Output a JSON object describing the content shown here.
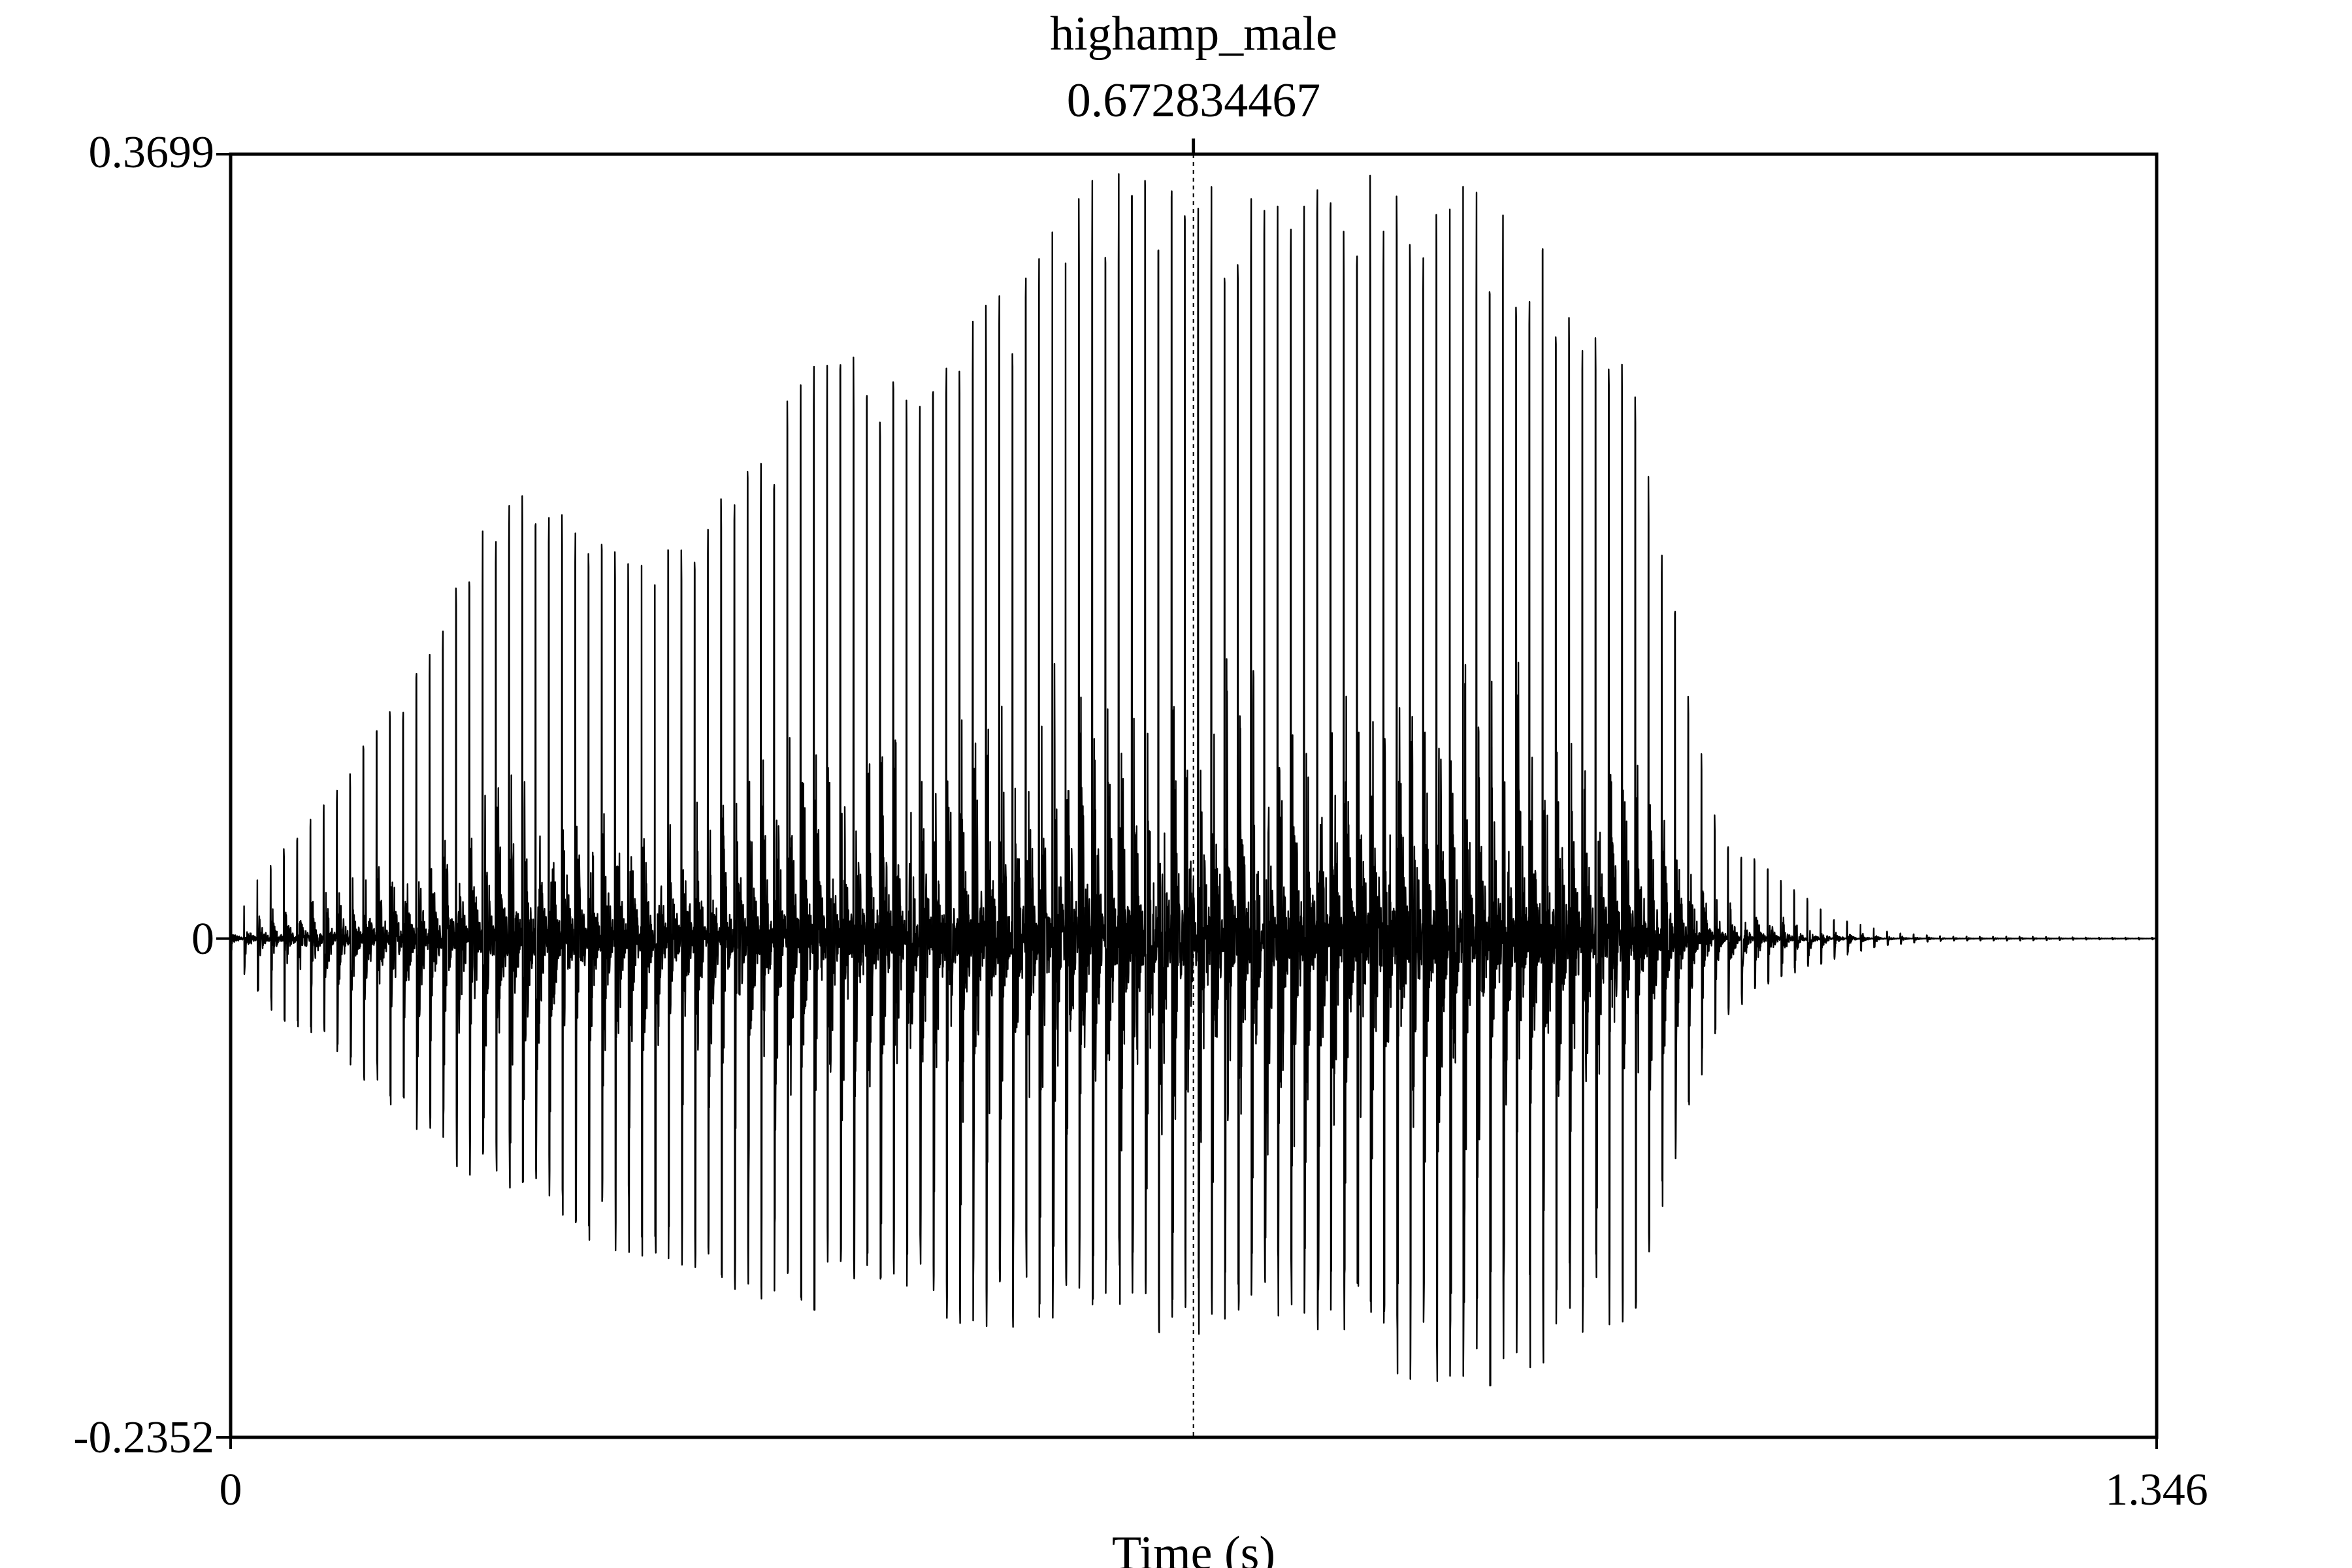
{
  "chart_data": {
    "type": "line",
    "title": "highamp_male",
    "subtitle": "0.672834467",
    "xlabel": "Time (s)",
    "ylabel": "",
    "xlim": [
      0,
      1.346
    ],
    "ylim": [
      -0.2352,
      0.3699
    ],
    "x_tick_labels": [
      "0",
      "1.346"
    ],
    "y_tick_labels": [
      "0.3699",
      "0",
      "-0.2352"
    ],
    "cursor_time": 0.672834467,
    "grid": false,
    "color": "#000000",
    "series": [
      {
        "envelope_time": [
          0,
          0.02,
          0.06,
          0.1,
          0.14,
          0.18,
          0.2,
          0.24,
          0.28,
          0.32,
          0.36,
          0.4,
          0.44,
          0.48,
          0.52,
          0.56,
          0.6,
          0.64,
          0.67,
          0.7,
          0.74,
          0.78,
          0.82,
          0.86,
          0.9,
          0.94,
          0.98,
          1.0,
          1.04,
          1.08,
          1.12,
          1.16,
          1.2,
          1.25,
          1.3,
          1.346
        ],
        "envelope_max": [
          0.005,
          0.03,
          0.06,
          0.1,
          0.14,
          0.2,
          0.22,
          0.2,
          0.18,
          0.2,
          0.22,
          0.27,
          0.28,
          0.26,
          0.3,
          0.32,
          0.36,
          0.37,
          0.36,
          0.35,
          0.35,
          0.36,
          0.36,
          0.36,
          0.34,
          0.31,
          0.28,
          0.19,
          0.05,
          0.03,
          0.01,
          0.003,
          0.001,
          0.001,
          0.0005,
          0.0005
        ],
        "envelope_min": [
          -0.005,
          -0.03,
          -0.05,
          -0.07,
          -0.1,
          -0.12,
          -0.12,
          -0.14,
          -0.15,
          -0.16,
          -0.17,
          -0.18,
          -0.16,
          -0.17,
          -0.19,
          -0.18,
          -0.18,
          -0.19,
          -0.19,
          -0.18,
          -0.18,
          -0.2,
          -0.21,
          -0.22,
          -0.21,
          -0.19,
          -0.18,
          -0.13,
          -0.04,
          -0.02,
          -0.01,
          -0.003,
          -0.001,
          -0.001,
          -0.0005,
          -0.0005
        ]
      }
    ]
  }
}
